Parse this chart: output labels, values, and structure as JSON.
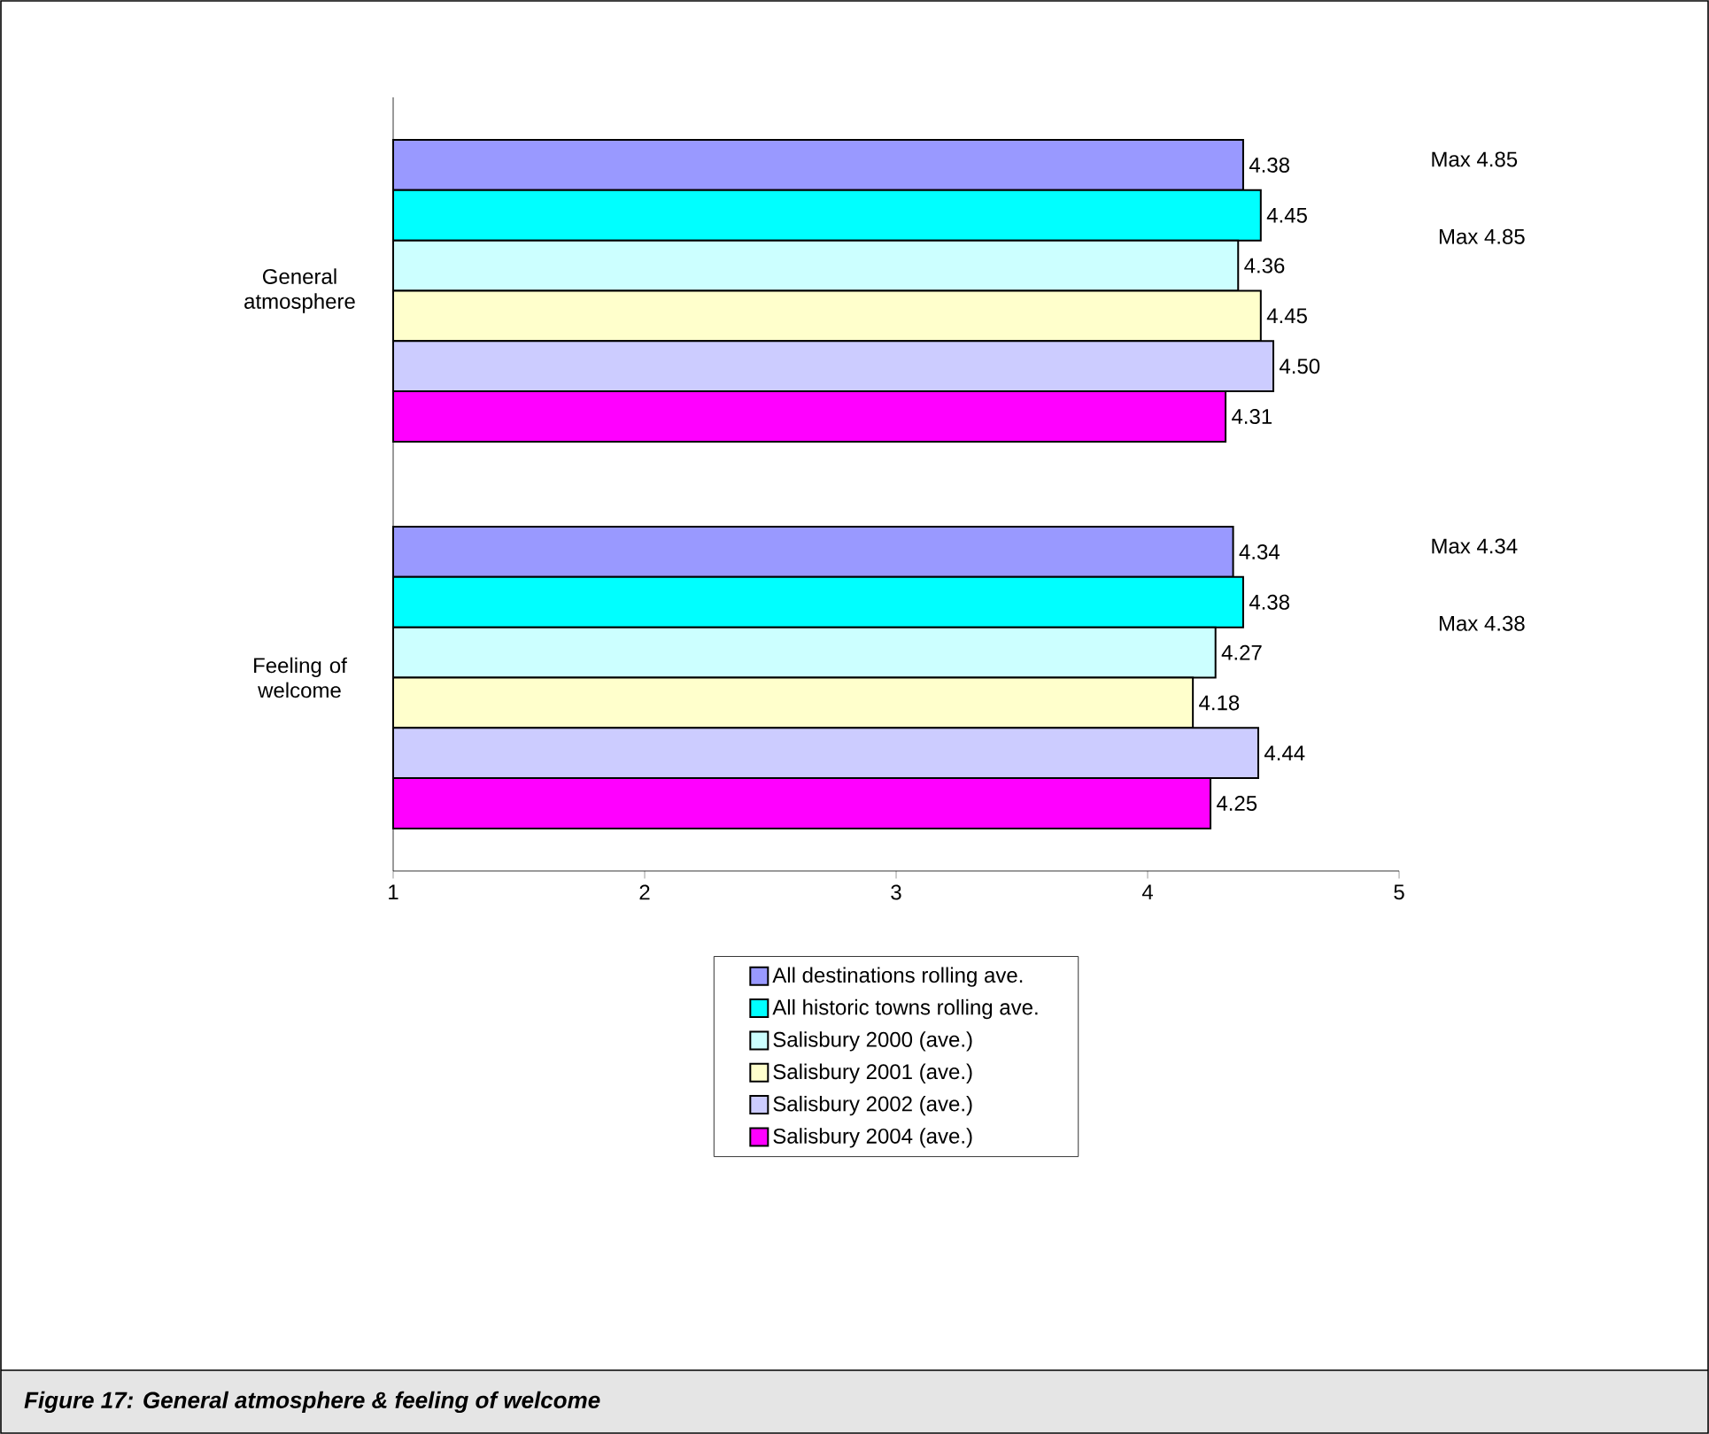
{
  "chart_data": {
    "type": "bar",
    "orientation": "horizontal",
    "title": "Figure 17: General atmosphere & feeling of welcome",
    "categories": [
      "General atmosphere",
      "Feeling of welcome"
    ],
    "series": [
      {
        "name": "All destinations rolling ave.",
        "color": "#9999ff",
        "values": [
          4.38,
          4.34
        ],
        "value_labels": [
          "4.38",
          "4.34"
        ]
      },
      {
        "name": "All historic towns rolling ave.",
        "color": "#00ffff",
        "values": [
          4.45,
          4.38
        ],
        "value_labels": [
          "4.45",
          "4.38"
        ]
      },
      {
        "name": "Salisbury 2000 (ave.)",
        "color": "#ccffff",
        "values": [
          4.36,
          4.27
        ],
        "value_labels": [
          "4.36",
          "4.27"
        ]
      },
      {
        "name": "Salisbury 2001 (ave.)",
        "color": "#ffffcc",
        "values": [
          4.45,
          4.18
        ],
        "value_labels": [
          "4.45",
          "4.18"
        ]
      },
      {
        "name": "Salisbury 2002 (ave.)",
        "color": "#ccccff",
        "values": [
          4.5,
          4.44
        ],
        "value_labels": [
          "4.50",
          "4.44"
        ]
      },
      {
        "name": "Salisbury 2004 (ave.)",
        "color": "#ff00ff",
        "values": [
          4.31,
          4.25
        ],
        "value_labels": [
          "4.31",
          "4.25"
        ]
      }
    ],
    "xlim": [
      1,
      5
    ],
    "xticks": [
      1,
      2,
      3,
      4,
      5
    ],
    "grid": false,
    "legend": "bottom",
    "annotations": [
      "Max 4.85",
      "Max 4.85",
      "Max 4.34",
      "Max 4.38"
    ]
  }
}
